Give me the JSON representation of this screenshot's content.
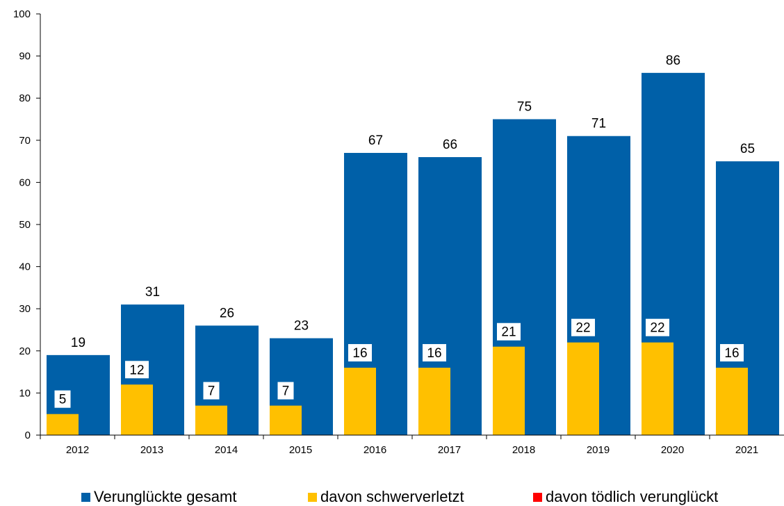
{
  "chart_data": {
    "type": "bar",
    "categories": [
      "2012",
      "2013",
      "2014",
      "2015",
      "2016",
      "2017",
      "2018",
      "2019",
      "2020",
      "2021"
    ],
    "series": [
      {
        "name": "Verunglückte gesamt",
        "color": "#0060A8",
        "values": [
          19,
          31,
          26,
          23,
          67,
          66,
          75,
          71,
          86,
          65
        ]
      },
      {
        "name": "davon schwerverletzt",
        "color": "#FFC000",
        "values": [
          5,
          12,
          7,
          7,
          16,
          16,
          21,
          22,
          22,
          16
        ]
      },
      {
        "name": "davon tödlich verunglückt",
        "color": "#FF0000",
        "values": [
          0,
          0,
          0,
          0,
          0,
          0,
          0,
          0,
          0,
          0
        ]
      }
    ],
    "ylim": [
      0,
      100
    ],
    "yticks": [
      0,
      10,
      20,
      30,
      40,
      50,
      60,
      70,
      80,
      90,
      100
    ],
    "grid": false,
    "legend_position": "bottom",
    "xlabel": "",
    "ylabel": ""
  }
}
